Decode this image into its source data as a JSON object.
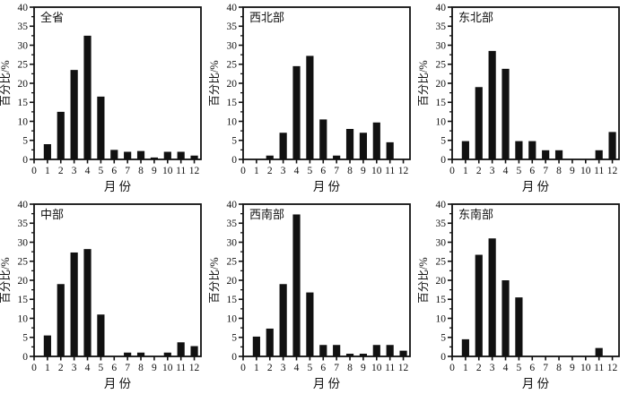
{
  "page": {
    "background": "#ffffff",
    "bar_color": "#111111",
    "axis_color": "#111111"
  },
  "chart_common": {
    "type": "bar",
    "xlabel": "月 份",
    "ylabel": "百分比/%",
    "ylim": [
      0,
      40
    ],
    "ytick_step": 5,
    "yminor_step": 2.5,
    "xlim": [
      0,
      12.5
    ],
    "xticks": [
      0,
      1,
      2,
      3,
      4,
      5,
      6,
      7,
      8,
      9,
      10,
      11,
      12
    ],
    "categories": [
      1,
      2,
      3,
      4,
      5,
      6,
      7,
      8,
      9,
      10,
      11,
      12
    ],
    "grid": false,
    "legend": "none"
  },
  "chart_data": [
    {
      "type": "bar",
      "title": "全省",
      "name": "chart-province-total",
      "values": [
        4.0,
        12.5,
        23.5,
        32.5,
        16.5,
        2.5,
        2.0,
        2.2,
        0.5,
        2.0,
        2.0,
        1.0
      ]
    },
    {
      "type": "bar",
      "title": "西北部",
      "name": "chart-northwest",
      "values": [
        0,
        1.0,
        7.0,
        24.5,
        27.2,
        10.5,
        1.0,
        8.0,
        7.0,
        9.7,
        4.5,
        0
      ]
    },
    {
      "type": "bar",
      "title": "东北部",
      "name": "chart-northeast",
      "values": [
        4.8,
        19.0,
        28.5,
        23.8,
        4.8,
        4.8,
        2.4,
        2.4,
        0,
        0,
        2.4,
        7.2
      ]
    },
    {
      "type": "bar",
      "title": "中部",
      "name": "chart-central",
      "values": [
        5.5,
        19.0,
        27.3,
        28.2,
        11.0,
        0,
        1.0,
        1.0,
        0,
        1.0,
        3.7,
        2.7
      ]
    },
    {
      "type": "bar",
      "title": "西南部",
      "name": "chart-southwest",
      "values": [
        5.2,
        7.3,
        19.0,
        37.3,
        16.8,
        3.0,
        3.0,
        0.7,
        0.7,
        3.0,
        3.0,
        1.5
      ]
    },
    {
      "type": "bar",
      "title": "东南部",
      "name": "chart-southeast",
      "values": [
        4.5,
        26.7,
        31.0,
        20.0,
        15.5,
        0,
        0,
        0,
        0,
        0,
        2.2,
        0
      ]
    }
  ]
}
